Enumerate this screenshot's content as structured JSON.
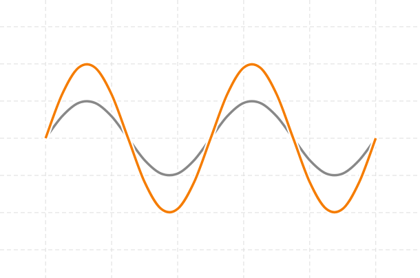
{
  "chart_data": {
    "type": "line",
    "x": [
      0,
      0.25,
      0.5,
      0.75,
      1,
      1.25,
      1.5,
      1.75,
      2,
      2.25,
      2.5,
      2.75,
      3,
      3.25,
      3.5,
      3.75,
      4,
      4.25,
      4.5,
      4.75,
      5
    ],
    "series": [
      {
        "color": "#888888",
        "values": [
          3,
          3.59,
          3.95,
          3.95,
          3.59,
          3,
          2.41,
          2.05,
          2.05,
          2.41,
          3,
          3.59,
          3.95,
          3.95,
          3.59,
          3,
          2.41,
          2.05,
          2.05,
          2.41,
          3
        ]
      },
      {
        "color": "#f57c00",
        "values": [
          3,
          4.18,
          4.9,
          4.9,
          4.18,
          3,
          1.82,
          1.1,
          1.1,
          1.82,
          3,
          4.18,
          4.9,
          4.9,
          4.18,
          3,
          1.82,
          1.1,
          1.1,
          1.82,
          3
        ]
      }
    ],
    "xlim": [
      -0.69,
      5.67
    ],
    "ylim": [
      -0.76,
      6.72
    ],
    "xticks": [
      0,
      1,
      2,
      3,
      4,
      5
    ],
    "yticks": [
      0,
      1,
      2,
      3,
      4,
      5,
      6
    ],
    "grid": true
  }
}
